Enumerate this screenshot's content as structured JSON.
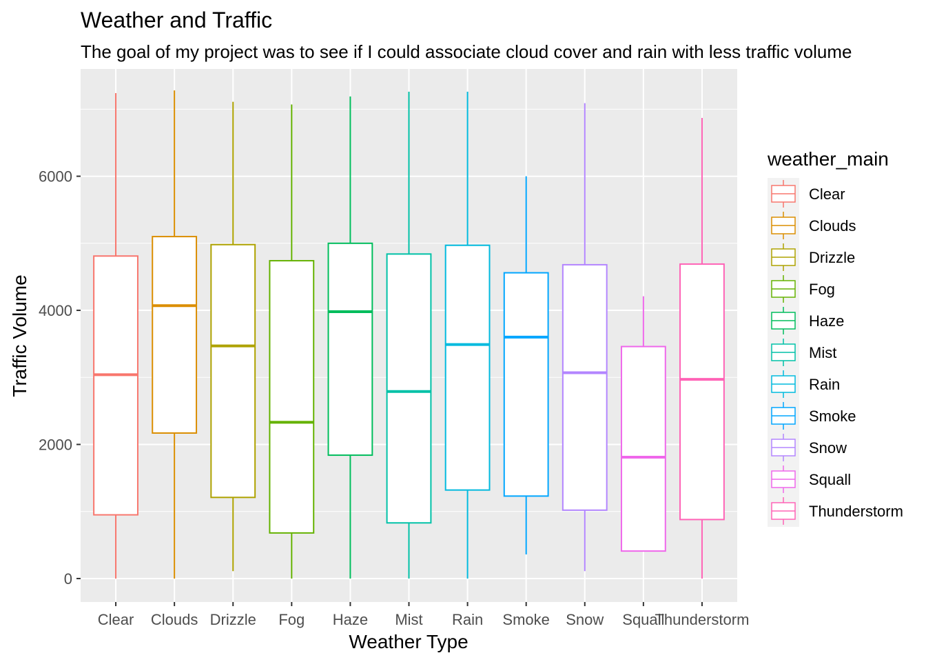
{
  "chart_data": {
    "type": "boxplot",
    "title": "Weather and Traffic",
    "subtitle": "The goal of my project was to see if I could associate cloud cover and rain with less traffic volume",
    "xlabel": "Weather Type",
    "ylabel": "Traffic Volume",
    "ylim": [
      -350,
      7600
    ],
    "yticks": [
      0,
      2000,
      4000,
      6000
    ],
    "grid": true,
    "legend": {
      "title": "weather_main",
      "placement": "right"
    },
    "categories": [
      "Clear",
      "Clouds",
      "Drizzle",
      "Fog",
      "Haze",
      "Mist",
      "Rain",
      "Smoke",
      "Snow",
      "Squall",
      "Thunderstorm"
    ],
    "colors": [
      "#F8766D",
      "#DB8E00",
      "#AEA200",
      "#64B200",
      "#00BD5C",
      "#00C1A7",
      "#00BADE",
      "#00A6FF",
      "#B385FF",
      "#EF67EB",
      "#FF63B6"
    ],
    "boxes": [
      {
        "category": "Clear",
        "min": 0,
        "q1": 950,
        "median": 3040,
        "q3": 4810,
        "max": 7240
      },
      {
        "category": "Clouds",
        "min": 0,
        "q1": 2170,
        "median": 4070,
        "q3": 5100,
        "max": 7280
      },
      {
        "category": "Drizzle",
        "min": 110,
        "q1": 1210,
        "median": 3470,
        "q3": 4980,
        "max": 7110
      },
      {
        "category": "Fog",
        "min": 0,
        "q1": 680,
        "median": 2330,
        "q3": 4740,
        "max": 7070
      },
      {
        "category": "Haze",
        "min": 0,
        "q1": 1840,
        "median": 3980,
        "q3": 5000,
        "max": 7190
      },
      {
        "category": "Mist",
        "min": 0,
        "q1": 830,
        "median": 2790,
        "q3": 4840,
        "max": 7260
      },
      {
        "category": "Rain",
        "min": 0,
        "q1": 1320,
        "median": 3490,
        "q3": 4970,
        "max": 7260
      },
      {
        "category": "Smoke",
        "min": 360,
        "q1": 1230,
        "median": 3600,
        "q3": 4560,
        "max": 6000
      },
      {
        "category": "Snow",
        "min": 110,
        "q1": 1020,
        "median": 3070,
        "q3": 4680,
        "max": 7090
      },
      {
        "category": "Squall",
        "min": 410,
        "q1": 410,
        "median": 1810,
        "q3": 3460,
        "max": 4210
      },
      {
        "category": "Thunderstorm",
        "min": 0,
        "q1": 880,
        "median": 2970,
        "q3": 4690,
        "max": 6870
      }
    ]
  }
}
